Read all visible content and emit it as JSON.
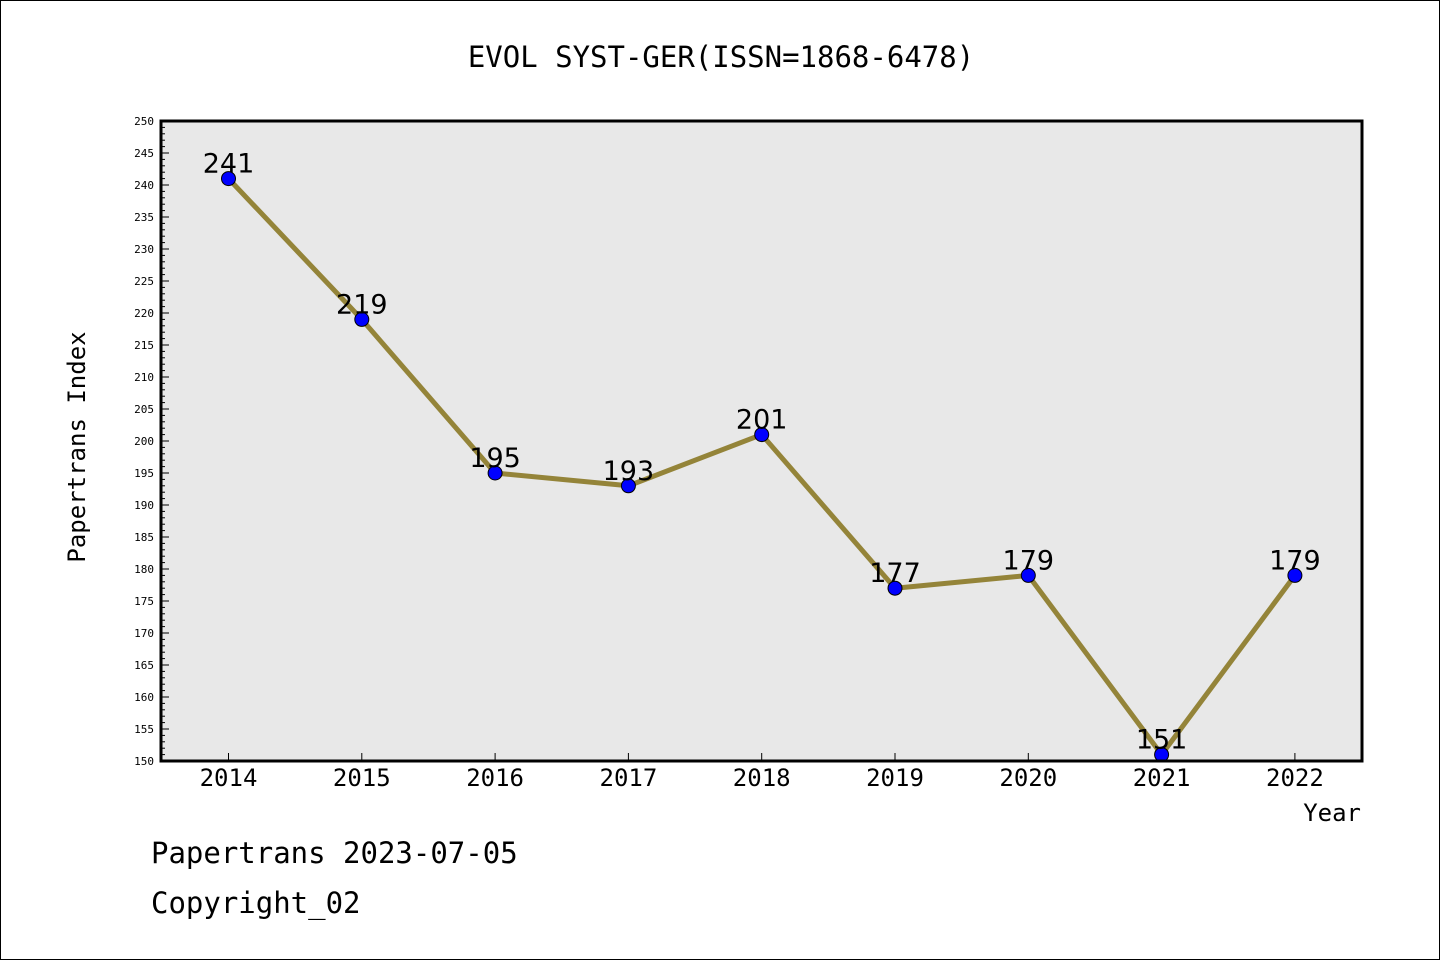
{
  "chart_data": {
    "type": "line",
    "title": "EVOL SYST-GER(ISSN=1868-6478)",
    "xlabel": "Year",
    "ylabel": "Papertrans Index",
    "categories": [
      "2014",
      "2015",
      "2016",
      "2017",
      "2018",
      "2019",
      "2020",
      "2021",
      "2022"
    ],
    "series": [
      {
        "values": [
          241,
          219,
          195,
          193,
          201,
          177,
          179,
          151,
          179
        ]
      }
    ],
    "ylim": [
      150,
      250
    ],
    "ytick_step": 5,
    "grid": false,
    "line_color": "#948439",
    "marker_color": "#0000ff",
    "plot_background": "#e8e8e8"
  },
  "footer": {
    "line1": "Papertrans 2023-07-05",
    "line2": "Copyright_02"
  }
}
